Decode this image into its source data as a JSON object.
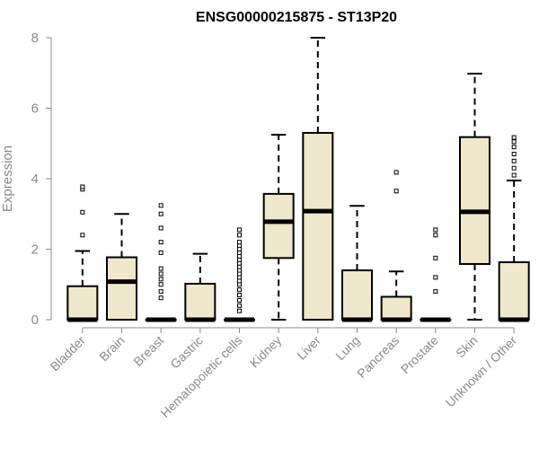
{
  "chart_data": {
    "type": "boxplot",
    "title": "ENSG00000215875 - ST13P20",
    "ylabel": "Expression",
    "xlabel": "",
    "ylim": [
      0,
      8
    ],
    "yticks": [
      0,
      2,
      4,
      6,
      8
    ],
    "box_fill": "#efe8cd",
    "categories": [
      "Bladder",
      "Brain",
      "Breast",
      "Gastric",
      "Hematopoietic cells",
      "Kidney",
      "Liver",
      "Lung",
      "Pancreas",
      "Prostate",
      "Skin",
      "Unknown / Other"
    ],
    "boxes": [
      {
        "q1": 0,
        "median": 0,
        "q3": 0.95,
        "whisker_low": 0,
        "whisker_high": 1.95,
        "outliers": [
          2.4,
          3.05,
          3.7,
          3.77
        ]
      },
      {
        "q1": 0,
        "median": 1.08,
        "q3": 1.77,
        "whisker_low": 0,
        "whisker_high": 3.0,
        "outliers": []
      },
      {
        "q1": 0,
        "median": 0,
        "q3": 0,
        "whisker_low": 0,
        "whisker_high": 0,
        "outliers": [
          0.62,
          0.8,
          1.0,
          1.15,
          1.3,
          1.45,
          1.9,
          2.2,
          2.6,
          3.0,
          3.24
        ]
      },
      {
        "q1": 0,
        "median": 0,
        "q3": 1.02,
        "whisker_low": 0,
        "whisker_high": 1.87,
        "outliers": []
      },
      {
        "q1": 0,
        "median": 0,
        "q3": 0,
        "whisker_low": 0,
        "whisker_high": 0,
        "outliers": [
          0.25,
          0.4,
          0.55,
          0.7,
          0.85,
          1.0,
          1.1,
          1.2,
          1.3,
          1.4,
          1.5,
          1.6,
          1.7,
          1.8,
          1.9,
          2.0,
          2.1,
          2.2,
          2.4,
          2.55
        ]
      },
      {
        "q1": 1.75,
        "median": 2.78,
        "q3": 3.57,
        "whisker_low": 0,
        "whisker_high": 5.25,
        "outliers": []
      },
      {
        "q1": 0,
        "median": 3.08,
        "q3": 5.3,
        "whisker_low": 0,
        "whisker_high": 8.0,
        "outliers": []
      },
      {
        "q1": 0,
        "median": 0,
        "q3": 1.4,
        "whisker_low": 0,
        "whisker_high": 3.23,
        "outliers": []
      },
      {
        "q1": 0,
        "median": 0,
        "q3": 0.65,
        "whisker_low": 0,
        "whisker_high": 1.37,
        "outliers": [
          3.65,
          4.18
        ]
      },
      {
        "q1": 0,
        "median": 0,
        "q3": 0,
        "whisker_low": 0,
        "whisker_high": 0,
        "outliers": [
          0.8,
          1.2,
          1.75,
          2.4,
          2.55
        ]
      },
      {
        "q1": 1.58,
        "median": 3.06,
        "q3": 5.18,
        "whisker_low": 0,
        "whisker_high": 6.98,
        "outliers": []
      },
      {
        "q1": 0,
        "median": 0,
        "q3": 1.63,
        "whisker_low": 0,
        "whisker_high": 3.95,
        "outliers": [
          4.1,
          4.3,
          4.5,
          4.7,
          4.9,
          5.05,
          5.17
        ]
      }
    ]
  }
}
